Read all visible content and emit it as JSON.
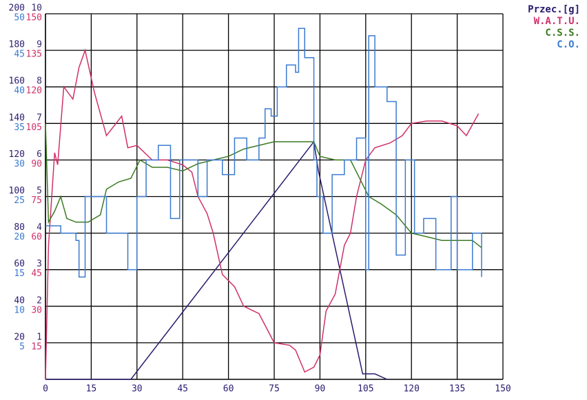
{
  "chart_data": {
    "type": "line",
    "xlim": [
      0,
      150
    ],
    "xticks": [
      0,
      15,
      30,
      45,
      60,
      75,
      90,
      105,
      120,
      135,
      150
    ],
    "grid": true,
    "y_axes": [
      {
        "lim": [
          0,
          200
        ],
        "ticks": [
          20,
          40,
          60,
          80,
          100,
          120,
          140,
          160,
          180,
          200
        ],
        "color": "#2a1a6e"
      },
      {
        "lim": [
          0,
          10
        ],
        "ticks": [
          1,
          2,
          3,
          4,
          5,
          6,
          7,
          8,
          9,
          10
        ],
        "color": "#3a2a6e"
      },
      {
        "lim": [
          0,
          50
        ],
        "ticks": [
          5,
          10,
          15,
          20,
          25,
          30,
          35,
          40,
          45,
          50
        ],
        "color": "#3a7ad0"
      },
      {
        "lim": [
          0,
          150
        ],
        "ticks": [
          15,
          30,
          45,
          60,
          75,
          90,
          105,
          120,
          135,
          150
        ],
        "color": "#d0306a"
      }
    ],
    "series": [
      {
        "name": "Przec.[g]",
        "color": "#2a1a6e",
        "axis": 0,
        "step": false,
        "x": [
          0,
          28,
          88,
          89.5,
          104,
          108,
          112
        ],
        "values": [
          0,
          0,
          130,
          114,
          3,
          3,
          0
        ]
      },
      {
        "name": "W.A.T.U.",
        "color": "#d0306a",
        "axis": 3,
        "step": false,
        "x": [
          0,
          1,
          3,
          4,
          6,
          9,
          11,
          13,
          16,
          20,
          25,
          27,
          30,
          35,
          40,
          45,
          48,
          50,
          53,
          55,
          58,
          62,
          65,
          70,
          75,
          80,
          82,
          85,
          88,
          90,
          92,
          95,
          98,
          100,
          102,
          105,
          108,
          113,
          117,
          120,
          125,
          130,
          135,
          138,
          142
        ],
        "values": [
          0,
          55,
          93,
          88,
          120,
          115,
          128,
          135,
          118,
          100,
          108,
          95,
          96,
          90,
          90,
          88,
          85,
          75,
          68,
          60,
          43,
          38,
          30,
          27,
          15,
          14,
          12,
          3,
          5,
          10,
          28,
          35,
          55,
          60,
          75,
          90,
          95,
          97,
          100,
          105,
          106,
          106,
          104,
          100,
          109
        ]
      },
      {
        "name": "C.S.S.",
        "color": "#3a7a20",
        "axis": 1,
        "step": false,
        "x": [
          0,
          1,
          3,
          5,
          7,
          10,
          14,
          18,
          20,
          24,
          28,
          31,
          35,
          40,
          45,
          50,
          55,
          60,
          65,
          70,
          75,
          80,
          85,
          88,
          90,
          95,
          100,
          103,
          106,
          110,
          115,
          120,
          125,
          130,
          135,
          140,
          143
        ],
        "values": [
          7,
          4.3,
          4.6,
          5,
          4.4,
          4.3,
          4.3,
          4.5,
          5.2,
          5.4,
          5.5,
          6,
          5.8,
          5.8,
          5.7,
          5.9,
          6,
          6.1,
          6.3,
          6.4,
          6.5,
          6.5,
          6.5,
          6.5,
          6.1,
          6,
          6,
          5.5,
          5,
          4.8,
          4.5,
          4,
          3.9,
          3.8,
          3.8,
          3.8,
          3.6
        ]
      },
      {
        "name": "C.O.",
        "color": "#3a7ad0",
        "axis": 2,
        "step": true,
        "x": [
          0,
          5,
          10,
          11,
          13,
          20,
          24,
          27,
          30,
          33,
          37,
          41,
          44,
          50,
          53,
          58,
          62,
          66,
          70,
          72,
          74,
          76,
          79,
          82,
          83,
          85,
          88,
          89,
          91,
          94,
          98,
          102,
          105,
          106,
          108,
          112,
          115,
          118,
          121,
          124,
          128,
          133,
          135,
          140,
          143
        ],
        "values": [
          21,
          20,
          19,
          14,
          25,
          20,
          20,
          15,
          25,
          30,
          32,
          22,
          30,
          25,
          30,
          28,
          33,
          30,
          33,
          37,
          36,
          40,
          43,
          42,
          48,
          44,
          30,
          25,
          20,
          28,
          30,
          33,
          15,
          47,
          40,
          38,
          17,
          30,
          20,
          22,
          15,
          25,
          15,
          20,
          14
        ]
      }
    ]
  }
}
